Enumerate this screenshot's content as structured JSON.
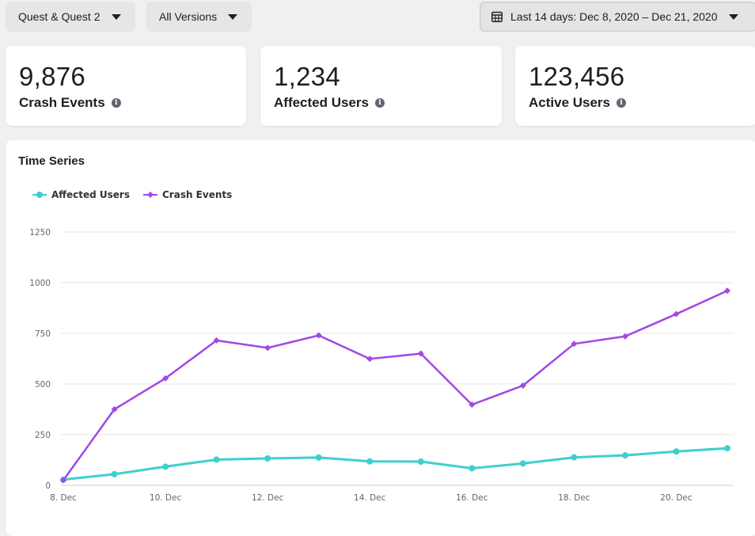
{
  "filters": {
    "device": "Quest & Quest 2",
    "version": "All Versions",
    "date_range": "Last 14 days: Dec 8, 2020 – Dec 21, 2020"
  },
  "metrics": [
    {
      "value": "9,876",
      "label": "Crash Events"
    },
    {
      "value": "1,234",
      "label": "Affected Users"
    },
    {
      "value": "123,456",
      "label": "Active Users"
    }
  ],
  "colors": {
    "affected": "#3ecfcf",
    "crash": "#a347e5",
    "grid": "#e6e6e6"
  },
  "chart_data": {
    "type": "line",
    "title": "Time Series",
    "x": [
      "8. Dec",
      "9. Dec",
      "10. Dec",
      "11. Dec",
      "12. Dec",
      "13. Dec",
      "14. Dec",
      "15. Dec",
      "16. Dec",
      "17. Dec",
      "18. Dec",
      "19. Dec",
      "20. Dec",
      "21. Dec"
    ],
    "x_tick_labels": [
      "8. Dec",
      "10. Dec",
      "12. Dec",
      "14. Dec",
      "16. Dec",
      "18. Dec",
      "20. Dec"
    ],
    "y_ticks": [
      0,
      250,
      500,
      750,
      1000,
      1250
    ],
    "ylim": [
      0,
      1250
    ],
    "legend_position": "top-left",
    "grid": true,
    "series": [
      {
        "name": "Affected Users",
        "values": [
          28,
          55,
          92,
          127,
          133,
          137,
          118,
          117,
          84,
          108,
          138,
          148,
          167,
          183
        ]
      },
      {
        "name": "Crash Events",
        "values": [
          25,
          375,
          528,
          715,
          678,
          740,
          624,
          650,
          398,
          492,
          698,
          735,
          845,
          960
        ]
      }
    ]
  }
}
